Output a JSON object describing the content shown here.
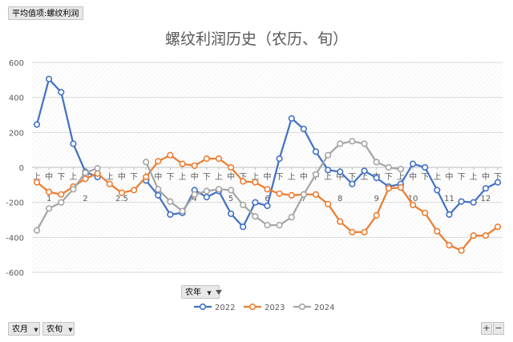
{
  "value_field": "平均值项:螺纹利润",
  "row_fields": {
    "month": "农月",
    "dekad": "农旬"
  },
  "legend_field": "农年",
  "zoom": {
    "plus": "+",
    "minus": "−"
  },
  "colors": {
    "2022": "#4472c4",
    "2023": "#ed7d31",
    "2024": "#a5a5a5",
    "grid": "#d9d9d9",
    "axis_text": "#595959",
    "title": "#595959",
    "hatch": "#e6e6e6"
  },
  "chart_data": {
    "type": "line",
    "title": "螺纹利润历史（农历、旬）",
    "xlabel": "",
    "ylabel": "",
    "ylim": [
      -600,
      600
    ],
    "yticks": [
      -600,
      -400,
      -200,
      0,
      200,
      400,
      600
    ],
    "grid": true,
    "legend_position": "bottom",
    "dekad_labels": [
      "上",
      "中",
      "下",
      "上",
      "中",
      "下",
      "上",
      "中",
      "下",
      "上",
      "中",
      "下",
      "上",
      "中",
      "下",
      "上",
      "中",
      "下",
      "上",
      "中",
      "下",
      "上",
      "中",
      "下",
      "上",
      "中",
      "下",
      "上",
      "中",
      "下",
      "上",
      "中",
      "下",
      "上",
      "中",
      "下",
      "上",
      "中",
      "下"
    ],
    "month_labels": [
      {
        "label": "1",
        "index": 1
      },
      {
        "label": "2",
        "index": 4
      },
      {
        "label": "2.5",
        "index": 7
      },
      {
        "label": "4",
        "index": 13
      },
      {
        "label": "5",
        "index": 16
      },
      {
        "label": "6",
        "index": 19
      },
      {
        "label": "7",
        "index": 22
      },
      {
        "label": "8",
        "index": 25
      },
      {
        "label": "9",
        "index": 28
      },
      {
        "label": "10",
        "index": 31
      },
      {
        "label": "11",
        "index": 34
      },
      {
        "label": "12",
        "index": 37
      }
    ],
    "series": [
      {
        "name": "2022",
        "values": [
          245,
          505,
          430,
          135,
          -25,
          -55,
          null,
          null,
          null,
          -75,
          -160,
          -270,
          -260,
          -130,
          -170,
          -135,
          -265,
          -340,
          -200,
          -220,
          50,
          280,
          220,
          90,
          -15,
          -25,
          -95,
          -20,
          -60,
          -110,
          -95,
          20,
          0,
          -130,
          -270,
          -195,
          -200,
          -120,
          -85
        ]
      },
      {
        "name": "2023",
        "values": [
          -85,
          -140,
          -155,
          -110,
          -65,
          -35,
          -95,
          -145,
          -130,
          -55,
          35,
          70,
          20,
          10,
          50,
          50,
          0,
          -80,
          -85,
          -125,
          -150,
          -160,
          -155,
          -155,
          -210,
          -310,
          -370,
          -370,
          -275,
          -120,
          -115,
          -215,
          -260,
          -365,
          -445,
          -475,
          -390,
          -390,
          -340
        ]
      },
      {
        "name": "2024",
        "values": [
          -360,
          -235,
          -200,
          -125,
          -30,
          -5,
          null,
          null,
          null,
          30,
          -125,
          -195,
          -250,
          -155,
          -135,
          -125,
          -130,
          -215,
          -280,
          -330,
          -330,
          -285,
          -155,
          -40,
          70,
          135,
          150,
          135,
          30,
          0,
          -10,
          null,
          null,
          null,
          null,
          null,
          null,
          null,
          null
        ]
      }
    ]
  }
}
